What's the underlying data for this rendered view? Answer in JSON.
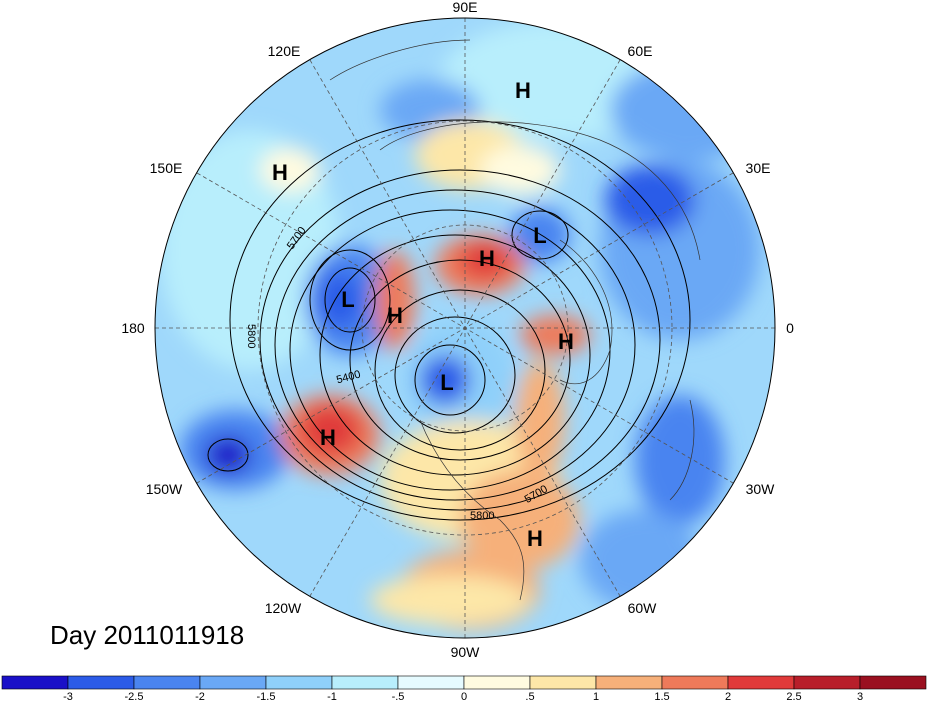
{
  "title": "Day 2011011918",
  "longitude_labels": [
    "90E",
    "60E",
    "30E",
    "0",
    "30W",
    "60W",
    "90W",
    "120W",
    "150W",
    "180",
    "150E",
    "120E"
  ],
  "contour_labels": [
    "5700",
    "5800",
    "5400",
    "5700",
    "5800"
  ],
  "pressure_centers": [
    {
      "type": "H"
    },
    {
      "type": "H"
    },
    {
      "type": "L"
    },
    {
      "type": "H"
    },
    {
      "type": "L"
    },
    {
      "type": "H"
    },
    {
      "type": "H"
    },
    {
      "type": "L"
    },
    {
      "type": "H"
    },
    {
      "type": "H"
    }
  ],
  "colorbar": {
    "tick_labels": [
      "-3",
      "-2.5",
      "-2",
      "-1.5",
      "-1",
      "-.5",
      "0",
      ".5",
      "1",
      "1.5",
      "2",
      "2.5",
      "3"
    ],
    "colors": [
      "#1a10c8",
      "#2b5be8",
      "#4a84f0",
      "#6aa8f5",
      "#8fd0fa",
      "#b8eefc",
      "#e6fbff",
      "#fffbe0",
      "#fde7a8",
      "#f6b07a",
      "#ee7a5a",
      "#e03a3a",
      "#b81e2a",
      "#9a1020"
    ]
  },
  "colors": {
    "ocean_base": "#8fd0fa",
    "anomaly_positive": "#ee7a5a",
    "anomaly_negative": "#2b5be8"
  }
}
